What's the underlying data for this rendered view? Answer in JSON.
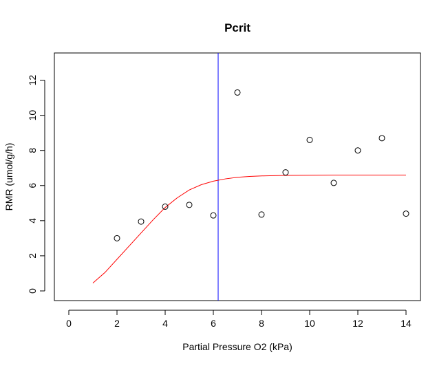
{
  "chart_data": {
    "type": "scatter",
    "title": "Pcrit",
    "xlabel": "Partial Pressure O2 (kPa)",
    "ylabel": "RMR (umol/g/h)",
    "xlim": [
      -0.6,
      14.6
    ],
    "ylim": [
      -0.55,
      13.55
    ],
    "x_ticks": [
      0,
      2,
      4,
      6,
      8,
      10,
      12,
      14
    ],
    "y_ticks": [
      0,
      2,
      4,
      6,
      8,
      10,
      12
    ],
    "grid": false,
    "points": [
      {
        "x": 2,
        "y": 3.0
      },
      {
        "x": 3,
        "y": 3.95
      },
      {
        "x": 4,
        "y": 4.8
      },
      {
        "x": 5,
        "y": 4.9
      },
      {
        "x": 6,
        "y": 4.3
      },
      {
        "x": 7,
        "y": 11.3
      },
      {
        "x": 8,
        "y": 4.35
      },
      {
        "x": 9,
        "y": 6.75
      },
      {
        "x": 10,
        "y": 8.6
      },
      {
        "x": 11,
        "y": 6.15
      },
      {
        "x": 12,
        "y": 8.0
      },
      {
        "x": 13,
        "y": 8.7
      },
      {
        "x": 14,
        "y": 4.4
      }
    ],
    "point_color": "#000000",
    "fit_curve": {
      "color": "#ff0000",
      "x": [
        1.0,
        1.5,
        2.0,
        2.5,
        3.0,
        3.5,
        4.0,
        4.5,
        5.0,
        5.5,
        6.0,
        6.5,
        7.0,
        7.5,
        8.0,
        9.0,
        10.0,
        11.0,
        12.0,
        13.0,
        14.0
      ],
      "y": [
        0.45,
        1.05,
        1.8,
        2.55,
        3.3,
        4.05,
        4.75,
        5.3,
        5.75,
        6.05,
        6.25,
        6.38,
        6.47,
        6.52,
        6.55,
        6.58,
        6.59,
        6.6,
        6.6,
        6.6,
        6.6
      ]
    },
    "vline": {
      "x": 6.2,
      "color": "#0000ff"
    }
  }
}
